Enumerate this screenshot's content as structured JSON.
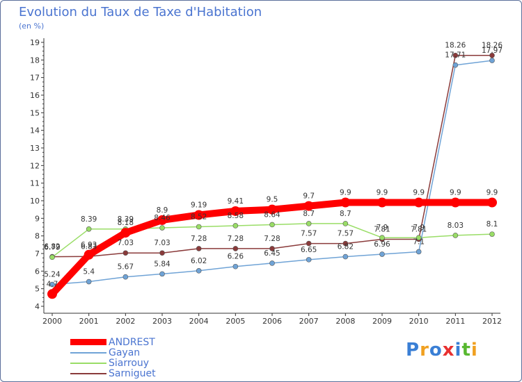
{
  "title": "Evolution du Taux de Taxe d'Habitation",
  "subtitle": "(en %)",
  "logo": {
    "text": "Proxiti",
    "colors": [
      "#3a7fd5",
      "#f0a020",
      "#3a7fd5",
      "#e83030",
      "#3a7fd5",
      "#58b830",
      "#f0a020"
    ]
  },
  "chart_data": {
    "type": "line",
    "title": "Evolution du Taux de Taxe d'Habitation",
    "ylabel": "(en %)",
    "xlabel": "",
    "x": [
      "2000",
      "2001",
      "2002",
      "2003",
      "2004",
      "2005",
      "2006",
      "2007",
      "2008",
      "2009",
      "2010",
      "2011",
      "2012"
    ],
    "ylim": [
      4,
      19
    ],
    "yticks": [
      "4",
      "5",
      "6",
      "7",
      "8",
      "9",
      "10",
      "11",
      "12",
      "13",
      "14",
      "15",
      "16",
      "17",
      "18",
      "19"
    ],
    "grid": false,
    "legend": "bottom-left",
    "series": [
      {
        "name": "ANDREST",
        "color": "#ff0000",
        "values": [
          4.7,
          6.93,
          8.18,
          8.9,
          9.19,
          9.41,
          9.5,
          9.7,
          9.9,
          9.9,
          9.9,
          9.9,
          9.9
        ],
        "labels": [
          "4.7",
          "6.93",
          "8.18",
          "8.9",
          "9.19",
          "9.41",
          "9.5",
          "9.7",
          "9.9",
          "9.9",
          "9.9",
          "9.9",
          "9.9"
        ]
      },
      {
        "name": "Gayan",
        "color": "#6fa3d6",
        "values": [
          5.24,
          5.4,
          5.67,
          5.84,
          6.02,
          6.26,
          6.45,
          6.65,
          6.82,
          6.96,
          7.1,
          17.71,
          17.97
        ],
        "labels": [
          "5.24",
          "5.4",
          "5.67",
          "5.84",
          "6.02",
          "6.26",
          "6.45",
          "6.65",
          "6.82",
          "6.96",
          "7.1",
          "17.71",
          "17.97"
        ]
      },
      {
        "name": "Siarrouy",
        "color": "#99dd66",
        "values": [
          6.79,
          8.39,
          8.39,
          8.46,
          8.52,
          8.58,
          8.64,
          8.7,
          8.7,
          7.9,
          7.9,
          8.03,
          8.1
        ],
        "labels": [
          "6.79",
          "8.39",
          "8.39",
          "8.46",
          "8.52",
          "8.58",
          "8.64",
          "8.7",
          "8.7",
          "7.9",
          "7.9",
          "8.03",
          "8.1"
        ]
      },
      {
        "name": "Sarniguet",
        "color": "#8a3a3a",
        "values": [
          6.82,
          6.83,
          7.03,
          7.03,
          7.28,
          7.28,
          7.28,
          7.57,
          7.57,
          7.81,
          7.81,
          18.26,
          18.26
        ],
        "labels": [
          "6.82",
          "6.83",
          "7.03",
          "7.03",
          "7.28",
          "7.28",
          "7.28",
          "7.57",
          "7.57",
          "7.81",
          "7.81",
          "18.26",
          "18.26"
        ]
      }
    ]
  }
}
